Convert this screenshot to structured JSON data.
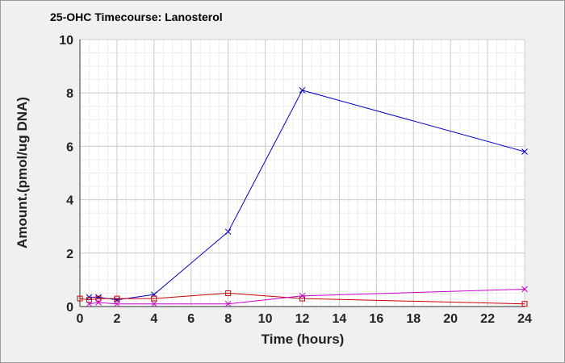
{
  "chart_data": {
    "type": "line",
    "title": "25-OHC Timecourse: Lanosterol",
    "xlabel": "Time (hours)",
    "ylabel": "Amount.(pmol/ug DNA)",
    "xlim": [
      0,
      24
    ],
    "ylim": [
      0,
      10
    ],
    "xticks": [
      "0",
      "2",
      "4",
      "6",
      "8",
      "10",
      "12",
      "14",
      "16",
      "18",
      "20",
      "22",
      "24"
    ],
    "yticks": [
      "0",
      "2",
      "4",
      "6",
      "8",
      "10"
    ],
    "grid": true,
    "legend": "none",
    "series": [
      {
        "color": "#0000cc",
        "marker": "x",
        "x": [
          0.5,
          1,
          2,
          4,
          8,
          12,
          24
        ],
        "y": [
          0.35,
          0.35,
          0.25,
          0.45,
          2.8,
          8.1,
          5.8
        ]
      },
      {
        "color": "#cc0000",
        "marker": "square",
        "x": [
          0,
          0.5,
          1,
          2,
          4,
          8,
          12,
          24
        ],
        "y": [
          0.3,
          0.25,
          0.3,
          0.3,
          0.3,
          0.5,
          0.3,
          0.1
        ]
      },
      {
        "color": "#cc00cc",
        "marker": "x",
        "x": [
          0.5,
          1,
          2,
          4,
          8,
          12,
          24
        ],
        "y": [
          0.1,
          0.15,
          0.1,
          0.1,
          0.1,
          0.4,
          0.65
        ]
      }
    ]
  }
}
